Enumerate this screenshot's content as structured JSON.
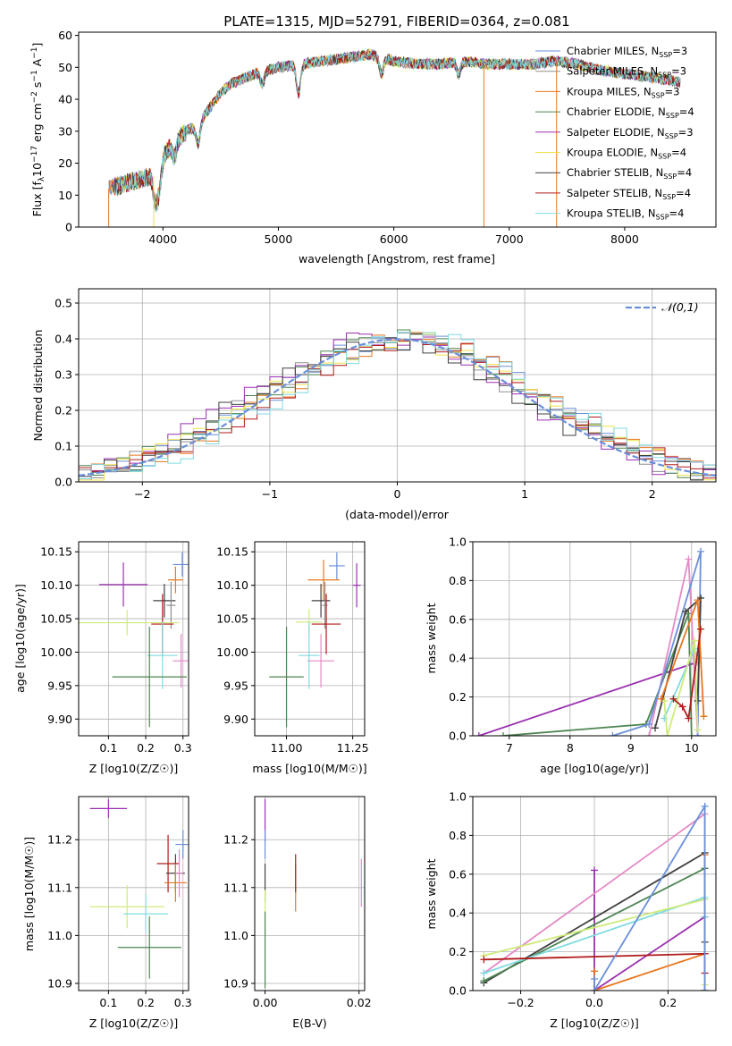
{
  "figure_title": "PLATE=1315, MJD=52791, FIBERID=0364, z=0.081",
  "colors": {
    "Chabrier MILES": "#6a8fd9",
    "Salpeter MILES": "#8f8f8f",
    "Kroupa MILES": "#e8761e",
    "Chabrier ELODIE": "#4e8552",
    "Salpeter ELODIE": "#9b30b0",
    "Kroupa ELODIE": "#f0e34a",
    "Chabrier STELIB": "#404040",
    "Salpeter STELIB": "#b01b1b",
    "Kroupa STELIB": "#7fdbe0",
    "gaussian": "#6a8fd9",
    "pink": "#e58ac6",
    "lime": "#cfeb7a",
    "green": "#4e8552",
    "orange": "#e8761e"
  },
  "chart_data": [
    {
      "id": "spectrum",
      "type": "line",
      "title": "",
      "xlabel": "wavelength [Angstrom, rest frame]",
      "ylabel": "Flux [f_λ 10^-17 erg cm^-2 s^-1 A^-1]",
      "xlim": [
        3270,
        8790
      ],
      "ylim": [
        0,
        61
      ],
      "xticks": [
        4000,
        5000,
        6000,
        7000,
        8000
      ],
      "yticks": [
        0,
        10,
        20,
        30,
        40,
        50,
        60
      ],
      "legend_position": "right",
      "spectrum_profile": {
        "x": [
          3530,
          3700,
          3900,
          4000,
          4100,
          4200,
          4300,
          4400,
          4500,
          4600,
          4800,
          5000,
          5200,
          5400,
          5600,
          5800,
          6000,
          6200,
          6400,
          6600,
          6800,
          7000,
          7200,
          7400,
          7600,
          7800,
          8000,
          8200,
          8400,
          8500
        ],
        "y": [
          12,
          14,
          16,
          22,
          27,
          30,
          32,
          37,
          42,
          45,
          48,
          50,
          51,
          52,
          53,
          54,
          52,
          51,
          51,
          52,
          51,
          51,
          51,
          52,
          51,
          49,
          48,
          47,
          46,
          45
        ]
      },
      "series": [
        {
          "name": "Chabrier MILES, N_SSP=3",
          "legend_main": "Chabrier MILES, N",
          "legend_sub": "SSP",
          "legend_tail": "=3",
          "color_key": "Chabrier MILES"
        },
        {
          "name": "Salpeter MILES, N_SSP=3",
          "legend_main": "Salpeter MILES, N",
          "legend_sub": "SSP",
          "legend_tail": "=3",
          "color_key": "Salpeter MILES"
        },
        {
          "name": "Kroupa MILES, N_SSP=3",
          "legend_main": "Kroupa MILES, N",
          "legend_sub": "SSP",
          "legend_tail": "=3",
          "color_key": "Kroupa MILES"
        },
        {
          "name": "Chabrier ELODIE, N_SSP=4",
          "legend_main": "Chabrier ELODIE, N",
          "legend_sub": "SSP",
          "legend_tail": "=4",
          "color_key": "Chabrier ELODIE"
        },
        {
          "name": "Salpeter ELODIE, N_SSP=3",
          "legend_main": "Salpeter ELODIE, N",
          "legend_sub": "SSP",
          "legend_tail": "=3",
          "color_key": "Salpeter ELODIE"
        },
        {
          "name": "Kroupa ELODIE, N_SSP=4",
          "legend_main": "Kroupa ELODIE, N",
          "legend_sub": "SSP",
          "legend_tail": "=4",
          "color_key": "Kroupa ELODIE"
        },
        {
          "name": "Chabrier STELIB, N_SSP=4",
          "legend_main": "Chabrier STELIB, N",
          "legend_sub": "SSP",
          "legend_tail": "=4",
          "color_key": "Chabrier STELIB"
        },
        {
          "name": "Salpeter STELIB, N_SSP=4",
          "legend_main": "Salpeter STELIB, N",
          "legend_sub": "SSP",
          "legend_tail": "=4",
          "color_key": "Salpeter STELIB"
        },
        {
          "name": "Kroupa STELIB, N_SSP=4",
          "legend_main": "Kroupa STELIB, N",
          "legend_sub": "SSP",
          "legend_tail": "=4",
          "color_key": "Kroupa STELIB"
        }
      ]
    },
    {
      "id": "residuals",
      "type": "line",
      "xlabel": "(data-model)/error",
      "ylabel": "Normed distribution",
      "xlim": [
        -2.5,
        2.5
      ],
      "ylim": [
        0,
        0.54
      ],
      "xticks": [
        -2,
        -1,
        0,
        1,
        2
      ],
      "yticks": [
        0.0,
        0.1,
        0.2,
        0.3,
        0.4,
        0.5
      ],
      "grid": true,
      "legend": "𝒩(0,1)",
      "legend_position": "top-right",
      "bin_width": 0.1
    },
    {
      "id": "age_vs_Z",
      "type": "scatter",
      "xlabel": "Z [log10(Z/Z☉)]",
      "ylabel": "age [log10(age/yr)]",
      "xlim": [
        0.02,
        0.315
      ],
      "ylim": [
        9.875,
        10.165
      ],
      "xticks": [
        0.1,
        0.2,
        0.3
      ],
      "yticks": [
        9.9,
        9.95,
        10.0,
        10.05,
        10.1,
        10.15
      ],
      "grid": true,
      "points": [
        {
          "x": 0.298,
          "y": 10.131,
          "xerr": 0.025,
          "yerr": 0.018,
          "c": "Chabrier MILES"
        },
        {
          "x": 0.28,
          "y": 10.108,
          "xerr": 0.02,
          "yerr": 0.02,
          "c": "Kroupa MILES"
        },
        {
          "x": 0.14,
          "y": 10.101,
          "xerr": 0.065,
          "yerr": 0.033,
          "c": "Salpeter ELODIE"
        },
        {
          "x": 0.25,
          "y": 10.077,
          "xerr": 0.03,
          "yerr": 0.025,
          "c": "Chabrier STELIB"
        },
        {
          "x": 0.268,
          "y": 10.07,
          "xerr": 0.012,
          "yerr": 0.035,
          "c": "Salpeter MILES"
        },
        {
          "x": 0.245,
          "y": 10.042,
          "xerr": 0.03,
          "yerr": 0.045,
          "c": "Salpeter STELIB"
        },
        {
          "x": 0.15,
          "y": 10.044,
          "xerr": 0.14,
          "yerr": 0.019,
          "c": "lime"
        },
        {
          "x": 0.245,
          "y": 9.995,
          "xerr": 0.04,
          "yerr": 0.05,
          "c": "Kroupa STELIB"
        },
        {
          "x": 0.295,
          "y": 9.987,
          "xerr": 0.022,
          "yerr": 0.04,
          "c": "pink"
        },
        {
          "x": 0.21,
          "y": 9.963,
          "xerr": 0.1,
          "yerr": 0.075,
          "c": "green"
        }
      ]
    },
    {
      "id": "age_vs_mass",
      "type": "scatter",
      "xlabel": "mass [log10(M/M☉)]",
      "ylabel": "",
      "xlim": [
        10.88,
        11.295
      ],
      "ylim": [
        9.875,
        10.165
      ],
      "xticks": [
        11.0,
        11.25
      ],
      "yticks": [
        9.9,
        9.95,
        10.0,
        10.05,
        10.1,
        10.15
      ],
      "grid": true,
      "points": [
        {
          "x": 11.19,
          "y": 10.129,
          "xerr": 0.03,
          "yerr": 0.02,
          "c": "Chabrier MILES"
        },
        {
          "x": 11.14,
          "y": 10.108,
          "xerr": 0.06,
          "yerr": 0.03,
          "c": "Kroupa MILES"
        },
        {
          "x": 11.265,
          "y": 10.1,
          "xerr": 0.015,
          "yerr": 0.033,
          "c": "Salpeter ELODIE"
        },
        {
          "x": 11.13,
          "y": 10.077,
          "xerr": 0.035,
          "yerr": 0.025,
          "c": "Chabrier STELIB"
        },
        {
          "x": 11.145,
          "y": 10.07,
          "xerr": 0.01,
          "yerr": 0.035,
          "c": "Salpeter MILES"
        },
        {
          "x": 11.15,
          "y": 10.042,
          "xerr": 0.055,
          "yerr": 0.045,
          "c": "Salpeter STELIB"
        },
        {
          "x": 11.085,
          "y": 10.045,
          "xerr": 0.05,
          "yerr": 0.02,
          "c": "lime"
        },
        {
          "x": 11.085,
          "y": 9.995,
          "xerr": 0.04,
          "yerr": 0.05,
          "c": "Kroupa STELIB"
        },
        {
          "x": 11.13,
          "y": 9.987,
          "xerr": 0.05,
          "yerr": 0.04,
          "c": "pink"
        },
        {
          "x": 11.0,
          "y": 9.963,
          "xerr": 0.065,
          "yerr": 0.075,
          "c": "green"
        }
      ]
    },
    {
      "id": "weight_vs_age",
      "type": "line",
      "xlabel": "age [log10(age/yr)]",
      "ylabel": "mass weight",
      "xlim": [
        6.4,
        10.4
      ],
      "ylim": [
        0,
        1
      ],
      "xticks": [
        7,
        8,
        9,
        10
      ],
      "yticks": [
        0.0,
        0.2,
        0.4,
        0.6,
        0.8,
        1.0
      ],
      "grid": true,
      "series": [
        {
          "c": "Salpeter ELODIE",
          "x": [
            6.5,
            10.1
          ],
          "y": [
            0.0,
            0.38
          ]
        },
        {
          "c": "green",
          "x": [
            6.9,
            9.25,
            9.95,
            10.0
          ],
          "y": [
            0.0,
            0.06,
            0.63,
            0.0
          ]
        },
        {
          "c": "pink",
          "x": [
            9.3,
            9.95,
            10.1
          ],
          "y": [
            0.0,
            0.91,
            0.0
          ]
        },
        {
          "c": "Chabrier MILES",
          "x": [
            8.7,
            9.3,
            10.15,
            10.1
          ],
          "y": [
            0.0,
            0.06,
            0.95,
            0.0
          ]
        },
        {
          "c": "Kroupa STELIB",
          "x": [
            9.55,
            10.05,
            10.1
          ],
          "y": [
            0.09,
            0.45,
            0.38
          ]
        },
        {
          "c": "Chabrier STELIB",
          "x": [
            9.4,
            9.9,
            10.15,
            10.1
          ],
          "y": [
            0.04,
            0.64,
            0.71,
            0.18
          ]
        },
        {
          "c": "lime",
          "x": [
            9.55,
            9.6,
            10.05,
            10.1
          ],
          "y": [
            0.18,
            0.0,
            0.49,
            0.03
          ]
        },
        {
          "c": "Kroupa MILES",
          "x": [
            9.5,
            10.1,
            10.2
          ],
          "y": [
            0.19,
            0.7,
            0.1
          ]
        },
        {
          "c": "Salpeter STELIB",
          "x": [
            9.7,
            9.85,
            9.95,
            10.15
          ],
          "y": [
            0.19,
            0.15,
            0.09,
            0.55
          ]
        }
      ]
    },
    {
      "id": "mass_vs_Z",
      "type": "scatter",
      "xlabel": "Z [log10(Z/Z☉)]",
      "ylabel": "mass [log10(M/M☉)]",
      "xlim": [
        0.02,
        0.315
      ],
      "ylim": [
        10.885,
        11.29
      ],
      "xticks": [
        0.1,
        0.2,
        0.3
      ],
      "yticks": [
        10.9,
        11.0,
        11.1,
        11.2
      ],
      "grid": true,
      "points": [
        {
          "x": 0.1,
          "y": 11.265,
          "xerr": 0.05,
          "yerr": 0.02,
          "c": "Salpeter ELODIE"
        },
        {
          "x": 0.3,
          "y": 11.19,
          "xerr": 0.02,
          "yerr": 0.03,
          "c": "Chabrier MILES"
        },
        {
          "x": 0.26,
          "y": 11.15,
          "xerr": 0.03,
          "yerr": 0.06,
          "c": "Salpeter STELIB"
        },
        {
          "x": 0.28,
          "y": 11.13,
          "xerr": 0.025,
          "yerr": 0.04,
          "c": "Chabrier STELIB"
        },
        {
          "x": 0.28,
          "y": 11.11,
          "xerr": 0.03,
          "yerr": 0.04,
          "c": "Kroupa MILES"
        },
        {
          "x": 0.29,
          "y": 11.13,
          "xerr": 0.01,
          "yerr": 0.05,
          "c": "pink"
        },
        {
          "x": 0.15,
          "y": 11.06,
          "xerr": 0.1,
          "yerr": 0.045,
          "c": "lime"
        },
        {
          "x": 0.2,
          "y": 11.045,
          "xerr": 0.06,
          "yerr": 0.04,
          "c": "Kroupa STELIB"
        },
        {
          "x": 0.21,
          "y": 10.975,
          "xerr": 0.085,
          "yerr": 0.065,
          "c": "green"
        }
      ]
    },
    {
      "id": "mass_vs_ebv",
      "type": "scatter",
      "xlabel": "E(B-V)",
      "ylabel": "",
      "xlim": [
        -0.0022,
        0.0212
      ],
      "ylim": [
        10.885,
        11.29
      ],
      "xticks": [
        0.0,
        0.02
      ],
      "yticks": [
        10.9,
        11.0,
        11.1,
        11.2
      ],
      "grid": true,
      "points": [
        {
          "x": 0.0,
          "y": 11.24,
          "yerr": 0.045,
          "c": "Salpeter ELODIE"
        },
        {
          "x": 0.0,
          "y": 11.19,
          "yerr": 0.03,
          "c": "Chabrier MILES"
        },
        {
          "x": 0.0,
          "y": 11.11,
          "yerr": 0.04,
          "c": "Chabrier STELIB"
        },
        {
          "x": 0.0,
          "y": 11.05,
          "yerr": 0.045,
          "c": "lime"
        },
        {
          "x": 0.0,
          "y": 10.97,
          "yerr": 0.08,
          "c": "green"
        },
        {
          "x": 0.0065,
          "y": 11.1,
          "yerr": 0.05,
          "c": "Kroupa MILES"
        },
        {
          "x": 0.0065,
          "y": 11.13,
          "yerr": 0.04,
          "c": "Salpeter STELIB"
        },
        {
          "x": 0.0205,
          "y": 11.11,
          "yerr": 0.05,
          "c": "pink"
        }
      ]
    },
    {
      "id": "weight_vs_Z",
      "type": "line",
      "xlabel": "Z [log10(Z/Z☉)]",
      "ylabel": "mass weight",
      "xlim": [
        -0.33,
        0.33
      ],
      "ylim": [
        0,
        1
      ],
      "xticks": [
        -0.2,
        0.0,
        0.2
      ],
      "yticks": [
        0.0,
        0.2,
        0.4,
        0.6,
        0.8,
        1.0
      ],
      "grid": true,
      "series": [
        {
          "c": "Salpeter ELODIE",
          "x": [
            0.0,
            0.0,
            0.3,
            0.3
          ],
          "y": [
            0.62,
            0.0,
            0.38,
            0.0
          ]
        },
        {
          "c": "pink",
          "x": [
            -0.3,
            0.3,
            0.3
          ],
          "y": [
            0.09,
            0.91,
            0.0
          ]
        },
        {
          "c": "Chabrier STELIB",
          "x": [
            -0.3,
            0.3,
            0.3
          ],
          "y": [
            0.04,
            0.71,
            0.25
          ]
        },
        {
          "c": "green",
          "x": [
            -0.3,
            0.3,
            0.3
          ],
          "y": [
            0.05,
            0.63,
            0.0
          ]
        },
        {
          "c": "Kroupa STELIB",
          "x": [
            -0.3,
            0.3,
            0.3
          ],
          "y": [
            0.09,
            0.48,
            0.38
          ]
        },
        {
          "c": "lime",
          "x": [
            -0.3,
            0.3,
            0.3
          ],
          "y": [
            0.18,
            0.47,
            0.03
          ]
        },
        {
          "c": "Kroupa MILES",
          "x": [
            0.0,
            0.0,
            0.3,
            0.3
          ],
          "y": [
            0.1,
            0.0,
            0.19,
            0.7
          ]
        },
        {
          "c": "Salpeter STELIB",
          "x": [
            -0.3,
            0.3,
            0.3
          ],
          "y": [
            0.16,
            0.19,
            0.09
          ]
        },
        {
          "c": "Chabrier MILES",
          "x": [
            0.0,
            0.0,
            0.3,
            0.3
          ],
          "y": [
            0.06,
            0.0,
            0.95,
            0.0
          ]
        }
      ]
    }
  ]
}
